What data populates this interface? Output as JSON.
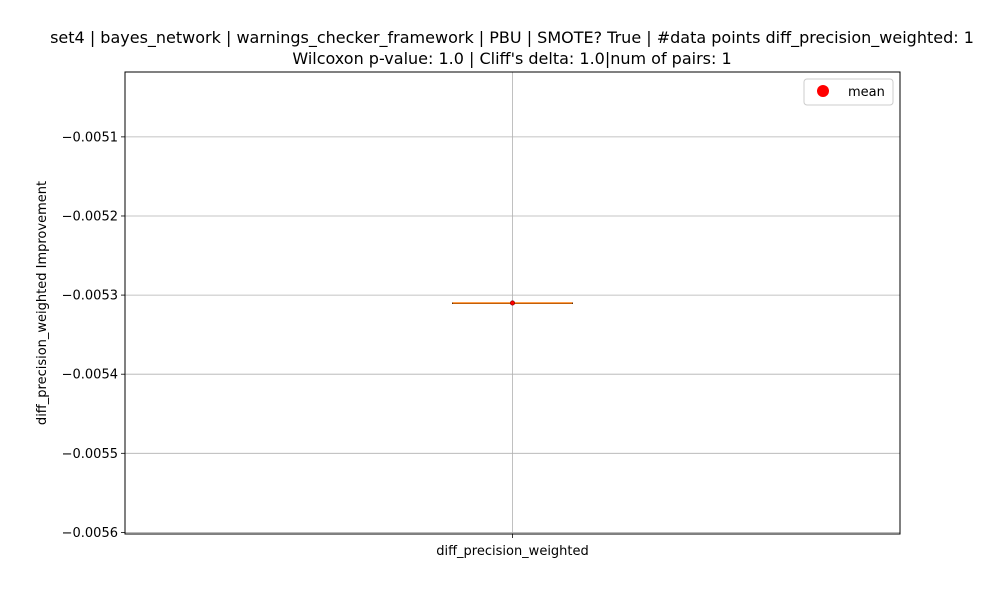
{
  "chart_data": {
    "type": "box",
    "title_line1": "set4 | bayes_network | warnings_checker_framework | PBU | SMOTE? True | #data points diff_precision_weighted: 1",
    "title_line2": "Wilcoxon p-value: 1.0 | Cliff's delta: 1.0|num of pairs: 1",
    "xlabel": "",
    "ylabel": "diff_precision_weighted Improvement",
    "categories": [
      "diff_precision_weighted"
    ],
    "ylim": [
      -0.005602,
      -0.005018
    ],
    "yticks": [
      -0.0056,
      -0.0055,
      -0.0054,
      -0.0053,
      -0.0052,
      -0.0051
    ],
    "ytick_labels": [
      "−0.0056",
      "−0.0055",
      "−0.0054",
      "−0.0053",
      "−0.0052",
      "−0.0051"
    ],
    "box": {
      "min": -0.00531,
      "q1": -0.00531,
      "median": -0.00531,
      "q3": -0.00531,
      "max": -0.00531,
      "mean": -0.00531
    },
    "legend": {
      "placement": "top-right",
      "entries": [
        {
          "label": "mean",
          "marker": "circle",
          "color": "#ff0000"
        }
      ]
    },
    "grid": true,
    "colors": {
      "median": "#ff7f0e",
      "mean": "#ff0000",
      "grid": "#b0b0b0",
      "box": "#000000"
    }
  }
}
